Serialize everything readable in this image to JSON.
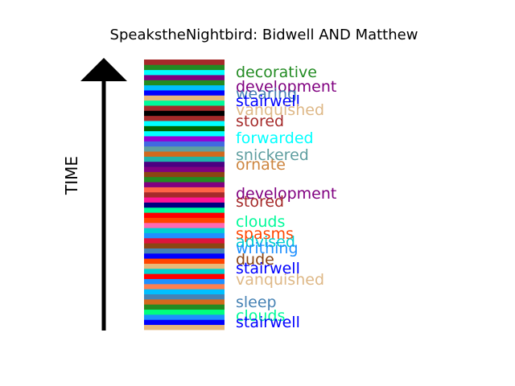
{
  "chart_data": {
    "type": "bar",
    "title": "SpeakstheNightbird: Bidwell AND Matthew",
    "ylabel": "TIME",
    "xlabel": "",
    "orientation": "stacked-strip",
    "time_direction": "up",
    "bands_bottom_to_top": [
      {
        "color": "#e8b87a"
      },
      {
        "color": "#0000ff"
      },
      {
        "color": "#1e90ff"
      },
      {
        "color": "#00ff7f"
      },
      {
        "color": "#228b22"
      },
      {
        "color": "#d2691e"
      },
      {
        "color": "#4682b4"
      },
      {
        "color": "#00bfff"
      },
      {
        "color": "#ff7f50"
      },
      {
        "color": "#1e90ff"
      },
      {
        "color": "#ff0000"
      },
      {
        "color": "#00ced1"
      },
      {
        "color": "#e8b87a"
      },
      {
        "color": "#ff4500"
      },
      {
        "color": "#0000ff"
      },
      {
        "color": "#4682b4"
      },
      {
        "color": "#8b4513"
      },
      {
        "color": "#dc143c"
      },
      {
        "color": "#1e90ff"
      },
      {
        "color": "#00ced1"
      },
      {
        "color": "#ff69b4"
      },
      {
        "color": "#ff4500"
      },
      {
        "color": "#ff0000"
      },
      {
        "color": "#00fa9a"
      },
      {
        "color": "#000080"
      },
      {
        "color": "#ff1493"
      },
      {
        "color": "#a52a2a"
      },
      {
        "color": "#ff6347"
      },
      {
        "color": "#800080"
      },
      {
        "color": "#228b22"
      },
      {
        "color": "#8b4513"
      },
      {
        "color": "#800080"
      },
      {
        "color": "#4b0082"
      },
      {
        "color": "#20b2aa"
      },
      {
        "color": "#d2691e"
      },
      {
        "color": "#5f9ea0"
      },
      {
        "color": "#4169e1"
      },
      {
        "color": "#9400d3"
      },
      {
        "color": "#00ffff"
      },
      {
        "color": "#006400"
      },
      {
        "color": "#00ffff"
      },
      {
        "color": "#a52a2a"
      },
      {
        "color": "#000000"
      },
      {
        "color": "#a52a2a"
      },
      {
        "color": "#00fa9a"
      },
      {
        "color": "#e8b87a"
      },
      {
        "color": "#0000ff"
      },
      {
        "color": "#00bfff"
      },
      {
        "color": "#228b22"
      },
      {
        "color": "#800080"
      },
      {
        "color": "#00ffff"
      },
      {
        "color": "#228b22"
      },
      {
        "color": "#a52a2a"
      }
    ],
    "labels_top_to_bottom": [
      {
        "text": "decorative",
        "color": "#228b22"
      },
      {
        "text": "development",
        "color": "#800080"
      },
      {
        "text": "wearing",
        "color": "#4682b4"
      },
      {
        "text": "stairwell",
        "color": "#0000ff"
      },
      {
        "text": "vanquished",
        "color": "#deb887"
      },
      {
        "text": "stored",
        "color": "#a52a2a"
      },
      {
        "text": "forwarded",
        "color": "#00ffff"
      },
      {
        "text": "snickered",
        "color": "#5f9ea0"
      },
      {
        "text": "ornate",
        "color": "#cd853f"
      },
      {
        "text": "development",
        "color": "#800080"
      },
      {
        "text": "stored",
        "color": "#a52a2a"
      },
      {
        "text": "clouds",
        "color": "#00fa9a"
      },
      {
        "text": "spasms",
        "color": "#ff4500"
      },
      {
        "text": "advised",
        "color": "#00ced1"
      },
      {
        "text": "writhing",
        "color": "#1e90ff"
      },
      {
        "text": "dude",
        "color": "#8b4513"
      },
      {
        "text": "stairwell",
        "color": "#0000ff"
      },
      {
        "text": "vanquished",
        "color": "#deb887"
      },
      {
        "text": "sleep",
        "color": "#4682b4"
      },
      {
        "text": "clouds",
        "color": "#00fa9a"
      },
      {
        "text": "stairwell",
        "color": "#0000ff"
      }
    ]
  }
}
